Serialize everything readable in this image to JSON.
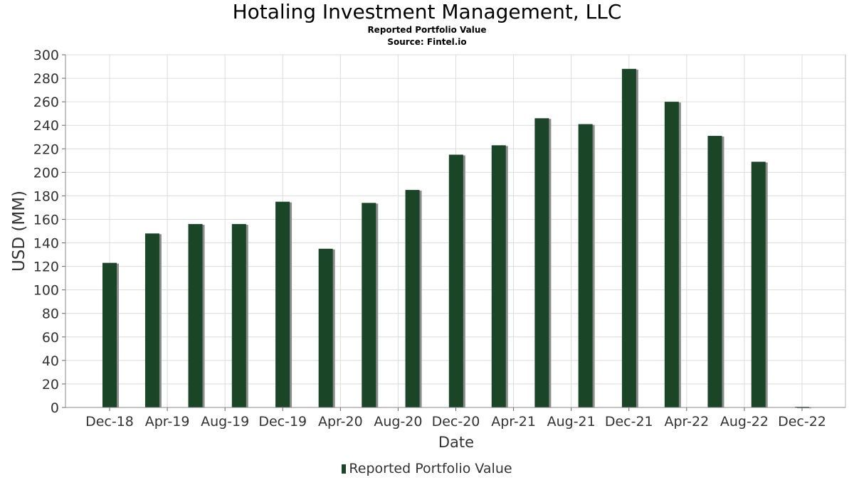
{
  "header": {
    "title": "Hotaling Investment Management, LLC",
    "subtitle": "Reported Portfolio Value",
    "source": "Source: Fintel.io"
  },
  "legend": {
    "label": "Reported Portfolio Value"
  },
  "colors": {
    "bar": "#1b4527",
    "shadow": "#8c8c8c",
    "grid": "#dcdcdc"
  },
  "chart_data": {
    "type": "bar",
    "title": "Hotaling Investment Management, LLC",
    "subtitle": "Reported Portfolio Value",
    "xlabel": "Date",
    "ylabel": "USD (MM)",
    "ylim": [
      0,
      300
    ],
    "yticks": [
      0,
      20,
      40,
      60,
      80,
      100,
      120,
      140,
      160,
      180,
      200,
      220,
      240,
      260,
      280,
      300
    ],
    "xticks": [
      "Dec-18",
      "Apr-19",
      "Aug-19",
      "Dec-19",
      "Apr-20",
      "Aug-20",
      "Dec-20",
      "Apr-21",
      "Aug-21",
      "Dec-21",
      "Apr-22",
      "Aug-22",
      "Dec-22"
    ],
    "grid": true,
    "legend_position": "bottom",
    "series": [
      {
        "name": "Reported Portfolio Value",
        "x": [
          "2018-12-31",
          "2019-03-31",
          "2019-06-30",
          "2019-09-30",
          "2019-12-31",
          "2020-03-31",
          "2020-06-30",
          "2020-09-30",
          "2020-12-31",
          "2021-03-31",
          "2021-06-30",
          "2021-09-30",
          "2021-12-31",
          "2022-03-31",
          "2022-06-30",
          "2022-09-30",
          "2022-12-31"
        ],
        "values": [
          123,
          148,
          156,
          156,
          175,
          135,
          174,
          185,
          215,
          223,
          246,
          241,
          288,
          260,
          231,
          209,
          0.5
        ]
      }
    ]
  }
}
